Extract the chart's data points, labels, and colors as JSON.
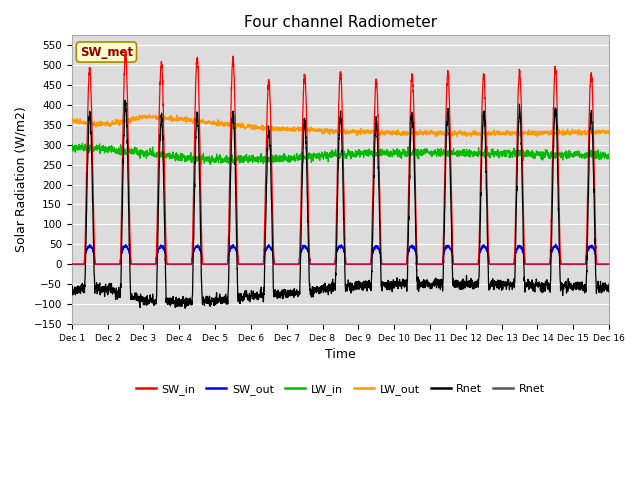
{
  "title": "Four channel Radiometer",
  "xlabel": "Time",
  "ylabel": "Solar Radiation (W/m2)",
  "ylim": [
    -150,
    575
  ],
  "yticks": [
    -150,
    -100,
    -50,
    0,
    50,
    100,
    150,
    200,
    250,
    300,
    350,
    400,
    450,
    500,
    550
  ],
  "n_days": 15,
  "annotation": "SW_met",
  "bg_color": "#dcdcdc",
  "plot_bg": "#dcdcdc",
  "fig_bg": "#ffffff",
  "colors": {
    "SW_in": "#ff0000",
    "SW_out": "#0000ff",
    "LW_in": "#00bb00",
    "LW_out": "#ff9900",
    "Rnet_black": "#000000",
    "Rnet_dark": "#555555"
  },
  "legend_labels": [
    "SW_in",
    "SW_out",
    "LW_in",
    "LW_out",
    "Rnet",
    "Rnet"
  ],
  "sw_in_peaks": [
    490,
    530,
    505,
    520,
    515,
    460,
    475,
    480,
    460,
    475,
    480,
    475,
    485,
    490,
    480
  ],
  "day_start": 0.35,
  "day_end": 0.65,
  "lw_in_nodes_x": [
    0,
    2,
    3,
    4,
    6,
    8,
    10,
    12,
    15
  ],
  "lw_in_nodes_y": [
    295,
    280,
    270,
    262,
    265,
    278,
    280,
    278,
    272
  ],
  "lw_out_nodes_x": [
    0,
    1,
    2,
    3,
    5,
    7,
    9,
    11,
    13,
    15
  ],
  "lw_out_nodes_y": [
    360,
    350,
    370,
    365,
    345,
    335,
    330,
    328,
    330,
    332
  ],
  "sw_out_peak": 45,
  "rnet_night": -90,
  "grid_color": "#c8c8c8",
  "tick_fontsize": 7,
  "linewidth": 0.9
}
